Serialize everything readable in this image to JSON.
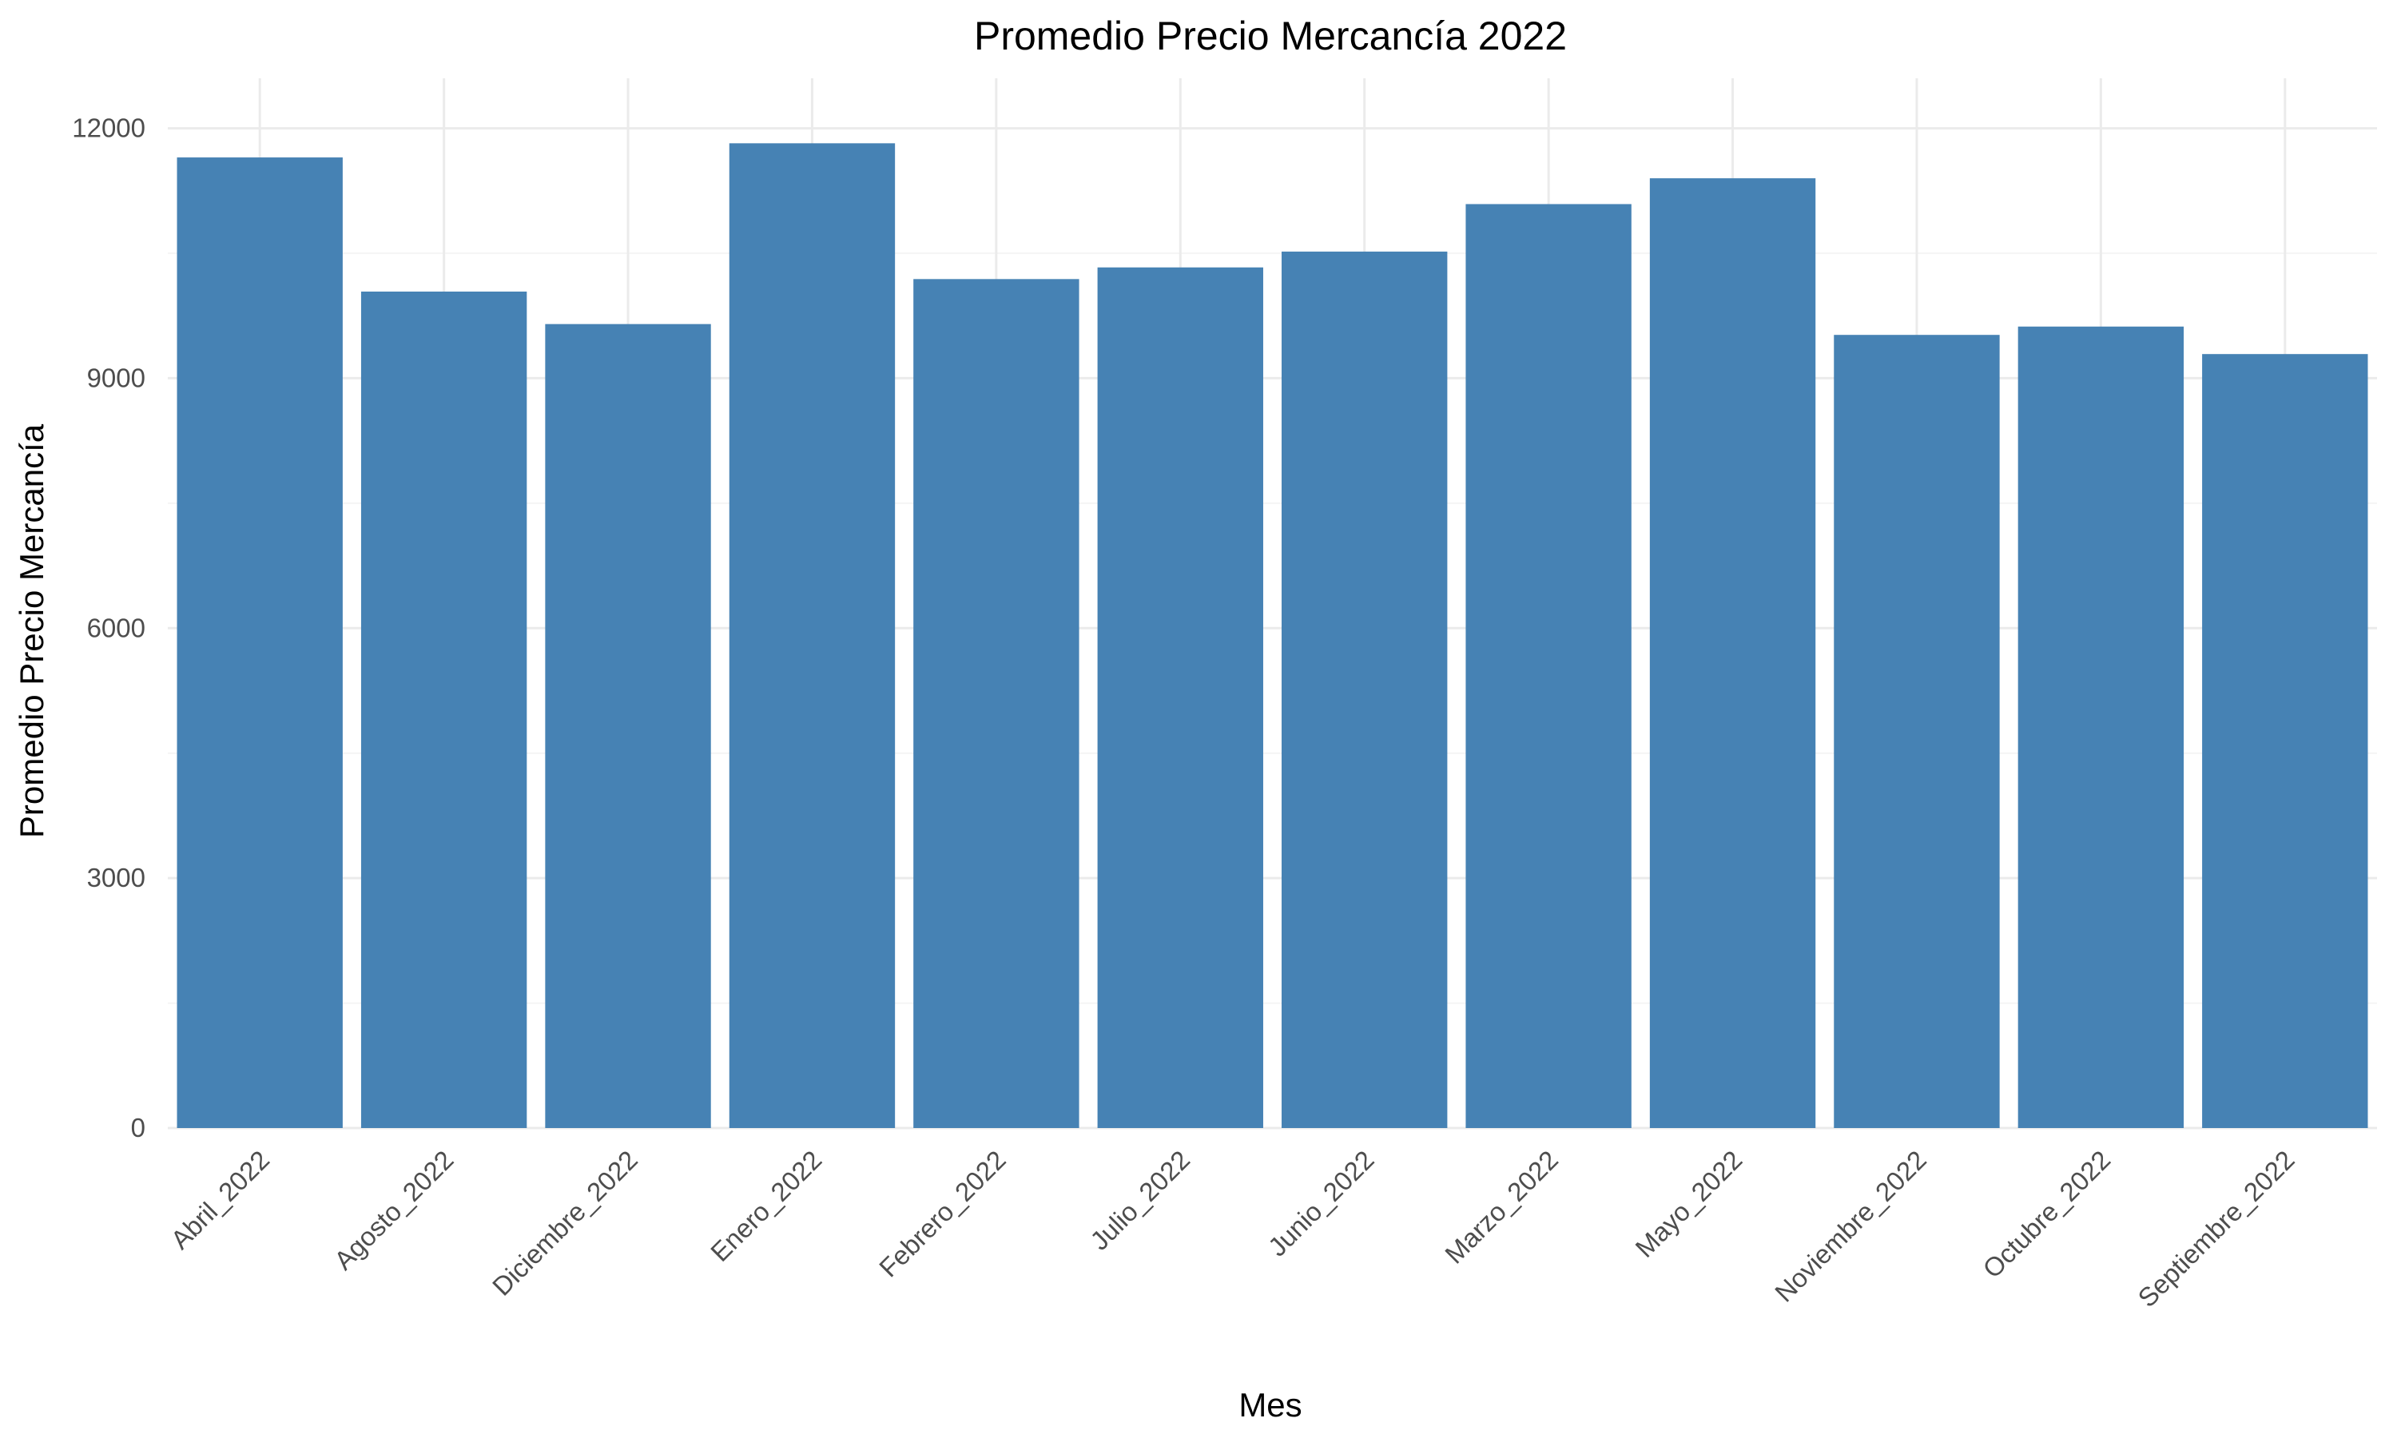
{
  "chart_data": {
    "type": "bar",
    "title": "Promedio Precio Mercancía 2022",
    "xlabel": "Mes",
    "ylabel": "Promedio Precio Mercancía",
    "categories": [
      "Abril_2022",
      "Agosto_2022",
      "Diciembre_2022",
      "Enero_2022",
      "Febrero_2022",
      "Julio_2022",
      "Junio_2022",
      "Marzo_2022",
      "Mayo_2022",
      "Noviembre_2022",
      "Octubre_2022",
      "Septiembre_2022"
    ],
    "values": [
      11650,
      10040,
      9650,
      11820,
      10190,
      10330,
      10520,
      11090,
      11400,
      9520,
      9620,
      9290
    ],
    "ylim": [
      0,
      12600
    ],
    "yticks": [
      0,
      3000,
      6000,
      9000,
      12000
    ],
    "ytick_labels": [
      "0",
      "3000",
      "6000",
      "9000",
      "12000"
    ],
    "grid": true,
    "legend": "none",
    "bar_color": "#4682B4"
  }
}
